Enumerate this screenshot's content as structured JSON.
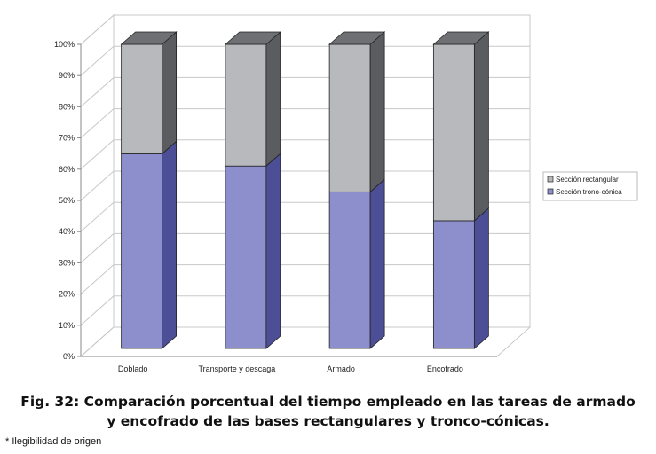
{
  "chart_data": {
    "type": "bar",
    "stacked": true,
    "percent": true,
    "three_d": true,
    "categories": [
      "Doblado",
      "Transporte y descaga",
      "Armado",
      "Encofrado"
    ],
    "series": [
      {
        "name": "Sección trono-cónica",
        "values": [
          64,
          60,
          51.5,
          42
        ],
        "color": "#8c8fcc",
        "side_color": "#4c4f95",
        "top_color": "#6a6db0"
      },
      {
        "name": "Sección rectangular",
        "values": [
          36,
          40,
          48.5,
          58
        ],
        "color": "#b7b9bc",
        "side_color": "#5a5c5f",
        "top_color": "#6e7073"
      }
    ],
    "yticks": [
      "0%",
      "10%",
      "20%",
      "30%",
      "40%",
      "50%",
      "60%",
      "70%",
      "80%",
      "90%",
      "100%"
    ],
    "ylim": [
      0,
      100
    ],
    "grid": true,
    "legend_position": "right",
    "legend": [
      "Sección rectangular",
      "Sección trono-cónica"
    ]
  },
  "caption": {
    "line1": "Fig. 32: Comparación porcentual del tiempo empleado en las tareas de armado",
    "line2": "y encofrado de las bases rectangulares y tronco-cónicas."
  },
  "note": "* Ilegibilidad de origen"
}
